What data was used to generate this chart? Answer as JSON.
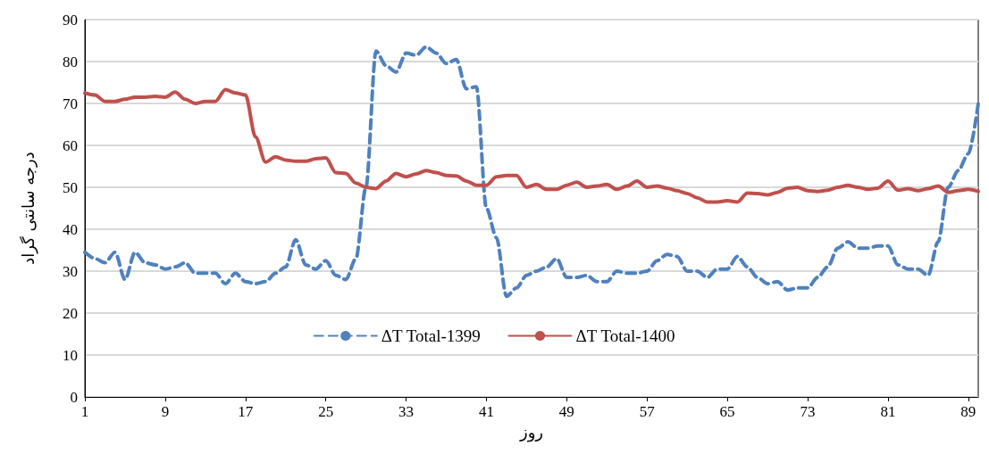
{
  "chart_data": {
    "type": "line",
    "xlabel": "روز",
    "ylabel": "درجه سانتی گراد",
    "x": [
      1,
      2,
      3,
      4,
      5,
      6,
      7,
      8,
      9,
      10,
      11,
      12,
      13,
      14,
      15,
      16,
      17,
      18,
      19,
      20,
      21,
      22,
      23,
      24,
      25,
      26,
      27,
      28,
      29,
      30,
      31,
      32,
      33,
      34,
      35,
      36,
      37,
      38,
      39,
      40,
      41,
      42,
      43,
      44,
      45,
      46,
      47,
      48,
      49,
      50,
      51,
      52,
      53,
      54,
      55,
      56,
      57,
      58,
      59,
      60,
      61,
      62,
      63,
      64,
      65,
      66,
      67,
      68,
      69,
      70,
      71,
      72,
      73,
      74,
      75,
      76,
      77,
      78,
      79,
      80,
      81,
      82,
      83,
      84,
      85,
      86,
      87,
      88,
      89,
      90
    ],
    "series": [
      {
        "name": "ΔT Total-1399",
        "color": "#4f81bd",
        "line_style": "dashed",
        "values": [
          34.5,
          33,
          32,
          34.5,
          28,
          34.5,
          32,
          31.5,
          30.5,
          31,
          32,
          29.5,
          29.5,
          29.5,
          27,
          29.5,
          27.5,
          27,
          27.5,
          29.5,
          31,
          37.5,
          31.5,
          30.5,
          32.5,
          29,
          28,
          33,
          50,
          82.5,
          79,
          77.5,
          82,
          81.5,
          83.5,
          82,
          79.5,
          80.5,
          73.5,
          74,
          45,
          38,
          24,
          26,
          29,
          30,
          31,
          33,
          28.5,
          28.5,
          29,
          27.5,
          27.5,
          30,
          29.5,
          29.5,
          30,
          32.5,
          34,
          33.5,
          30,
          30,
          28.5,
          30.5,
          30.5,
          33.5,
          31,
          28.5,
          27,
          27.5,
          25.5,
          26,
          26,
          28.5,
          31,
          35.5,
          37,
          35.5,
          35.5,
          36,
          36,
          31.5,
          30.5,
          30.5,
          29,
          37,
          50,
          54,
          58,
          70
        ]
      },
      {
        "name": "ΔT Total-1400",
        "color": "#c0504d",
        "line_style": "solid",
        "values": [
          72.5,
          72,
          70.5,
          70.5,
          71,
          71.5,
          71.5,
          71.7,
          71.5,
          72.7,
          71,
          70,
          70.5,
          70.5,
          73.3,
          72.5,
          72,
          62,
          56,
          57.3,
          56.5,
          56.2,
          56.2,
          56.8,
          57,
          53.5,
          53.3,
          51,
          50,
          49.7,
          51.5,
          53.3,
          52.5,
          53.2,
          54,
          53.5,
          52.8,
          52.7,
          51.5,
          50.5,
          50.5,
          52.5,
          52.8,
          52.8,
          50,
          50.7,
          49.5,
          49.5,
          50.5,
          51.2,
          50,
          50.3,
          50.7,
          49.5,
          50.3,
          51.5,
          50,
          50.3,
          49.8,
          49.2,
          48.5,
          47.5,
          46.5,
          46.5,
          46.8,
          46.5,
          48.6,
          48.5,
          48.2,
          48.8,
          49.8,
          50,
          49.2,
          49,
          49.3,
          50,
          50.5,
          50,
          49.5,
          49.8,
          51.5,
          49.3,
          49.7,
          49.2,
          49.7,
          50.3,
          48.8,
          49.2,
          49.5,
          49
        ]
      }
    ],
    "xlim": [
      1,
      90
    ],
    "xticks": [
      1,
      9,
      17,
      25,
      33,
      41,
      49,
      57,
      65,
      73,
      81,
      89
    ],
    "ylim": [
      0,
      90
    ],
    "yticks": [
      0,
      10,
      20,
      30,
      40,
      50,
      60,
      70,
      80,
      90
    ],
    "grid": "y",
    "legend": "bottom",
    "marker": "none"
  }
}
